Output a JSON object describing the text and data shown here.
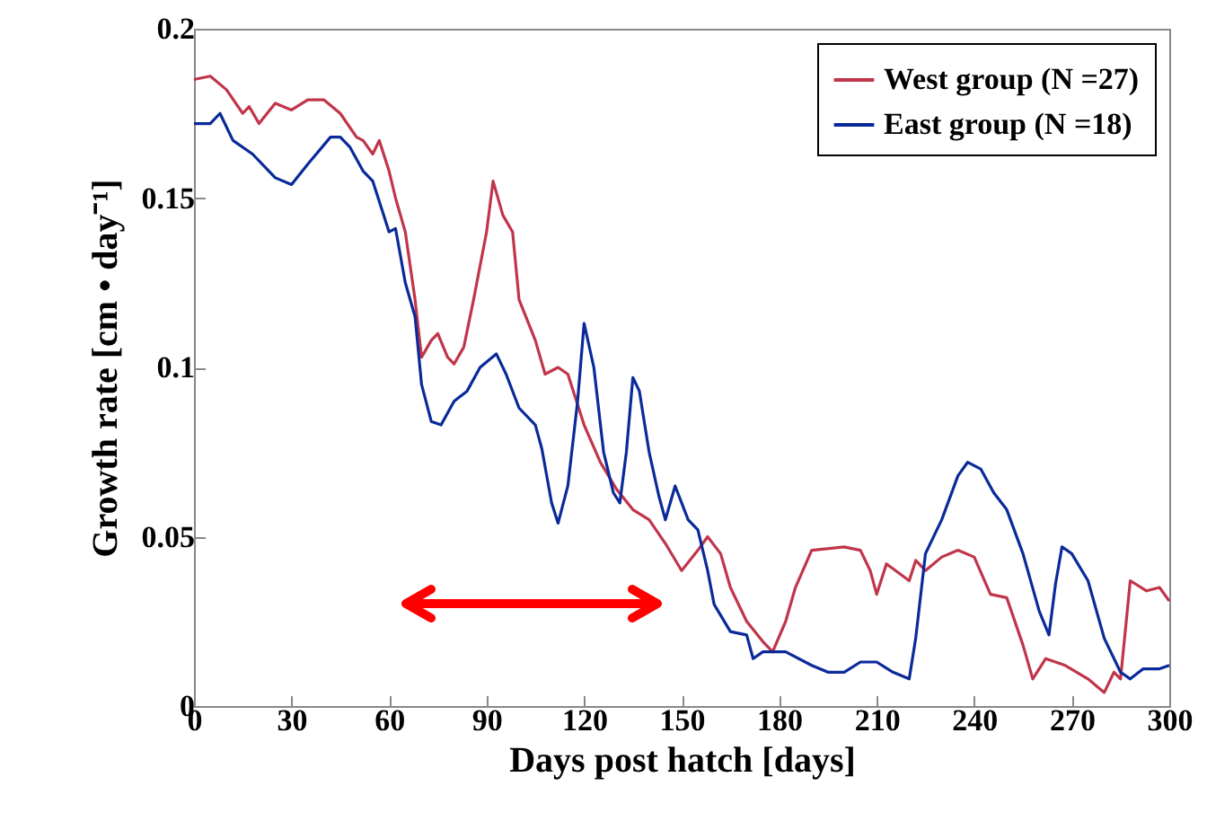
{
  "chart_data": {
    "type": "line",
    "xlabel": "Days post hatch [days]",
    "ylabel": "Growth rate [cm • day⁻¹]",
    "xlim": [
      0,
      300
    ],
    "xticks": [
      0,
      30,
      60,
      90,
      120,
      150,
      180,
      210,
      240,
      270,
      300
    ],
    "ylim": [
      0,
      0.2
    ],
    "yticks": [
      0,
      0.05,
      0.1,
      0.15,
      0.2
    ],
    "legend": "top right",
    "grid": false,
    "series": [
      {
        "name": "West group (N =27)",
        "color": "#c0354a",
        "x": [
          0,
          5,
          10,
          15,
          17,
          20,
          25,
          30,
          35,
          40,
          45,
          50,
          52,
          55,
          57,
          60,
          62,
          65,
          68,
          70,
          73,
          75,
          78,
          80,
          83,
          86,
          90,
          92,
          95,
          98,
          100,
          105,
          108,
          112,
          115,
          120,
          125,
          130,
          135,
          140,
          145,
          150,
          155,
          158,
          162,
          165,
          170,
          175,
          178,
          182,
          185,
          190,
          200,
          205,
          208,
          210,
          213,
          220,
          222,
          225,
          230,
          235,
          240,
          245,
          250,
          255,
          258,
          262,
          268,
          275,
          280,
          283,
          285,
          288,
          293,
          297,
          300
        ],
        "values": [
          0.185,
          0.186,
          0.182,
          0.175,
          0.177,
          0.172,
          0.178,
          0.176,
          0.179,
          0.179,
          0.175,
          0.168,
          0.167,
          0.163,
          0.167,
          0.158,
          0.15,
          0.14,
          0.12,
          0.103,
          0.108,
          0.11,
          0.103,
          0.101,
          0.106,
          0.12,
          0.14,
          0.155,
          0.145,
          0.14,
          0.12,
          0.108,
          0.098,
          0.1,
          0.098,
          0.083,
          0.072,
          0.064,
          0.058,
          0.055,
          0.048,
          0.04,
          0.046,
          0.05,
          0.045,
          0.035,
          0.025,
          0.019,
          0.016,
          0.025,
          0.035,
          0.046,
          0.047,
          0.046,
          0.04,
          0.033,
          0.042,
          0.037,
          0.043,
          0.04,
          0.044,
          0.046,
          0.044,
          0.033,
          0.032,
          0.018,
          0.008,
          0.014,
          0.012,
          0.008,
          0.004,
          0.01,
          0.008,
          0.037,
          0.034,
          0.035,
          0.031
        ]
      },
      {
        "name": "East group (N =18)",
        "color": "#0a2a9a",
        "x": [
          0,
          5,
          8,
          12,
          18,
          25,
          30,
          35,
          42,
          45,
          48,
          52,
          55,
          58,
          60,
          62,
          65,
          68,
          70,
          73,
          76,
          80,
          84,
          88,
          93,
          96,
          100,
          105,
          107,
          110,
          112,
          115,
          118,
          120,
          123,
          126,
          129,
          131,
          133,
          135,
          137,
          140,
          143,
          145,
          148,
          152,
          155,
          158,
          160,
          165,
          170,
          172,
          175,
          182,
          190,
          195,
          200,
          205,
          210,
          215,
          220,
          222,
          225,
          230,
          235,
          238,
          242,
          246,
          250,
          255,
          260,
          263,
          265,
          267,
          270,
          275,
          280,
          285,
          288,
          292,
          297,
          300
        ],
        "values": [
          0.172,
          0.172,
          0.175,
          0.167,
          0.163,
          0.156,
          0.154,
          0.16,
          0.168,
          0.168,
          0.165,
          0.158,
          0.155,
          0.146,
          0.14,
          0.141,
          0.125,
          0.115,
          0.095,
          0.084,
          0.083,
          0.09,
          0.093,
          0.1,
          0.104,
          0.098,
          0.088,
          0.083,
          0.076,
          0.06,
          0.054,
          0.065,
          0.09,
          0.113,
          0.1,
          0.075,
          0.063,
          0.06,
          0.075,
          0.097,
          0.093,
          0.075,
          0.062,
          0.055,
          0.065,
          0.055,
          0.052,
          0.04,
          0.03,
          0.022,
          0.021,
          0.014,
          0.016,
          0.016,
          0.012,
          0.01,
          0.01,
          0.013,
          0.013,
          0.01,
          0.008,
          0.02,
          0.045,
          0.055,
          0.068,
          0.072,
          0.07,
          0.063,
          0.058,
          0.045,
          0.028,
          0.021,
          0.036,
          0.047,
          0.045,
          0.037,
          0.02,
          0.01,
          0.008,
          0.011,
          0.011,
          0.012
        ]
      }
    ]
  }
}
